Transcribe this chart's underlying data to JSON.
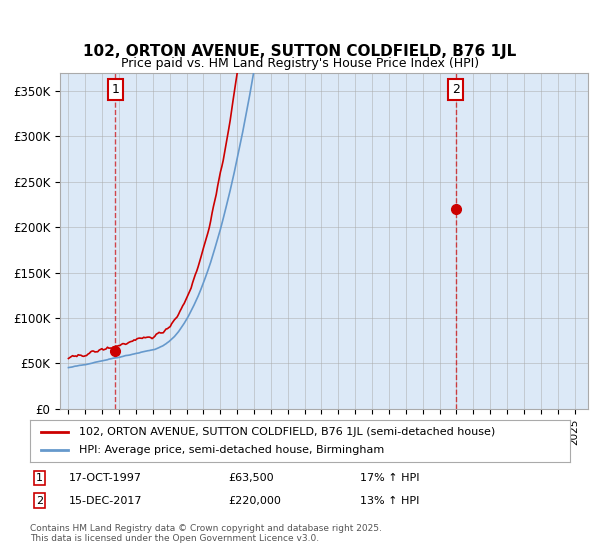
{
  "title": "102, ORTON AVENUE, SUTTON COLDFIELD, B76 1JL",
  "subtitle": "Price paid vs. HM Land Registry's House Price Index (HPI)",
  "background_color": "#dce9f7",
  "plot_bg_color": "#dce9f7",
  "ylabel_ticks": [
    "£0",
    "£50K",
    "£100K",
    "£150K",
    "£200K",
    "£250K",
    "£300K",
    "£350K"
  ],
  "ytick_values": [
    0,
    50000,
    100000,
    150000,
    200000,
    250000,
    300000,
    350000
  ],
  "ylim": [
    0,
    370000
  ],
  "xlim_start": 1994.5,
  "xlim_end": 2025.8,
  "sale1_x": 1997.79,
  "sale1_y": 63500,
  "sale2_x": 2017.96,
  "sale2_y": 220000,
  "sale1_label": "1",
  "sale2_label": "2",
  "sale1_date": "17-OCT-1997",
  "sale1_price": "£63,500",
  "sale1_hpi": "17% ↑ HPI",
  "sale2_date": "15-DEC-2017",
  "sale2_price": "£220,000",
  "sale2_hpi": "13% ↑ HPI",
  "legend_line1": "102, ORTON AVENUE, SUTTON COLDFIELD, B76 1JL (semi-detached house)",
  "legend_line2": "HPI: Average price, semi-detached house, Birmingham",
  "footer": "Contains HM Land Registry data © Crown copyright and database right 2025.\nThis data is licensed under the Open Government Licence v3.0.",
  "line_color_red": "#cc0000",
  "line_color_blue": "#6699cc",
  "dashed_color": "#cc0000",
  "grid_color": "#aaaaaa",
  "box_color_red": "#cc0000"
}
